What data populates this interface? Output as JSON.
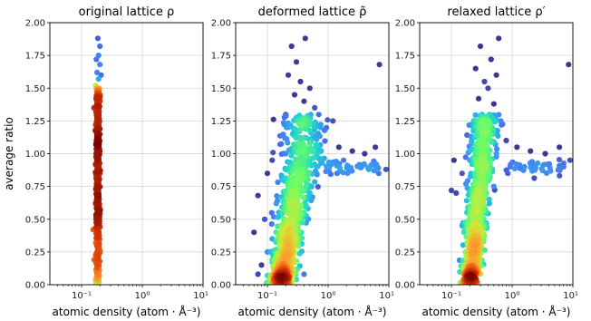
{
  "chart_data": [
    {
      "type": "scatter",
      "title": "original lattice ρ",
      "xlabel": "atomic density (atom · Å⁻³)",
      "ylabel": "average ratio",
      "xscale": "log",
      "xlim": [
        0.03,
        10
      ],
      "ylim": [
        0,
        2
      ],
      "x_ticks": [
        "10⁻¹",
        "10⁰",
        "10¹"
      ],
      "y_ticks": [
        "0.00",
        "0.25",
        "0.50",
        "0.75",
        "1.00",
        "1.25",
        "1.50",
        "1.75",
        "2.00"
      ],
      "grid": true,
      "colormap": "turbo (color encodes local point density)",
      "points": [
        [
          0.185,
          1.88
        ],
        [
          0.2,
          1.82
        ],
        [
          0.19,
          1.75
        ],
        [
          0.175,
          1.72
        ],
        [
          0.2,
          1.68
        ],
        [
          0.18,
          1.62
        ],
        [
          0.19,
          1.57
        ],
        [
          0.17,
          1.52
        ],
        [
          0.2,
          1.45
        ],
        [
          0.18,
          1.38
        ],
        [
          0.19,
          1.3
        ],
        [
          0.17,
          1.22
        ],
        [
          0.2,
          1.15
        ],
        [
          0.18,
          1.08
        ],
        [
          0.19,
          1.0
        ],
        [
          0.17,
          0.92
        ],
        [
          0.2,
          0.85
        ],
        [
          0.18,
          0.78
        ],
        [
          0.19,
          0.7
        ],
        [
          0.17,
          0.62
        ],
        [
          0.2,
          0.55
        ],
        [
          0.18,
          0.48
        ],
        [
          0.19,
          0.4
        ],
        [
          0.17,
          0.32
        ],
        [
          0.2,
          0.25
        ],
        [
          0.18,
          0.18
        ],
        [
          0.19,
          0.1
        ],
        [
          0.17,
          0.04
        ],
        [
          0.155,
          0.42
        ],
        [
          0.16,
          0.19
        ],
        [
          0.21,
          1.6
        ],
        [
          0.16,
          1.35
        ]
      ]
    },
    {
      "type": "scatter",
      "title": "deformed lattice ρ̃",
      "xlabel": "atomic density (atom · Å⁻³)",
      "ylabel": "",
      "xscale": "log",
      "xlim": [
        0.03,
        10
      ],
      "ylim": [
        0,
        2
      ],
      "x_ticks": [
        "10⁻¹",
        "10⁰",
        "10¹"
      ],
      "y_ticks": [
        "0.00",
        "0.25",
        "0.50",
        "0.75",
        "1.00",
        "1.25",
        "1.50",
        "1.75",
        "2.00"
      ],
      "grid": true,
      "colormap": "turbo (color encodes local point density)",
      "points": [
        [
          0.42,
          1.88
        ],
        [
          0.25,
          1.82
        ],
        [
          0.3,
          1.7
        ],
        [
          0.22,
          1.6
        ],
        [
          0.35,
          1.55
        ],
        [
          0.5,
          1.5
        ],
        [
          0.28,
          1.45
        ],
        [
          0.4,
          1.4
        ],
        [
          0.6,
          1.35
        ],
        [
          7.0,
          1.68
        ],
        [
          0.2,
          1.3
        ],
        [
          0.45,
          1.25
        ],
        [
          0.75,
          1.2
        ],
        [
          1.2,
          1.25
        ],
        [
          0.3,
          1.18
        ],
        [
          0.55,
          1.12
        ],
        [
          1.5,
          1.05
        ],
        [
          2.5,
          1.02
        ],
        [
          4.0,
          1.0
        ],
        [
          6.0,
          1.05
        ],
        [
          9.0,
          0.88
        ],
        [
          1.8,
          0.95
        ],
        [
          0.12,
          0.95
        ],
        [
          0.2,
          1.0
        ],
        [
          0.35,
          1.0
        ],
        [
          0.65,
          0.98
        ],
        [
          0.1,
          0.85
        ],
        [
          0.18,
          0.8
        ],
        [
          0.3,
          0.75
        ],
        [
          0.5,
          0.7
        ],
        [
          0.07,
          0.68
        ],
        [
          0.14,
          0.62
        ],
        [
          0.25,
          0.58
        ],
        [
          0.4,
          0.55
        ],
        [
          0.09,
          0.5
        ],
        [
          0.2,
          0.45
        ],
        [
          0.35,
          0.4
        ],
        [
          0.06,
          0.4
        ],
        [
          0.12,
          0.35
        ],
        [
          0.28,
          0.3
        ],
        [
          0.1,
          0.25
        ],
        [
          0.2,
          0.2
        ],
        [
          0.3,
          0.18
        ],
        [
          0.08,
          0.15
        ],
        [
          0.15,
          0.12
        ],
        [
          0.25,
          0.1
        ],
        [
          0.1,
          0.07
        ],
        [
          0.18,
          0.05
        ],
        [
          0.3,
          0.04
        ],
        [
          0.07,
          0.08
        ],
        [
          0.12,
          0.02
        ],
        [
          0.22,
          0.01
        ],
        [
          0.4,
          0.08
        ],
        [
          1.4,
          0.85
        ]
      ]
    },
    {
      "type": "scatter",
      "title": "relaxed lattice ρ′",
      "xlabel": "atomic density (atom · Å⁻³)",
      "ylabel": "",
      "xscale": "log",
      "xlim": [
        0.03,
        10
      ],
      "ylim": [
        0,
        2
      ],
      "x_ticks": [
        "10⁻¹",
        "10⁰",
        "10¹"
      ],
      "y_ticks": [
        "0.00",
        "0.25",
        "0.50",
        "0.75",
        "1.00",
        "1.25",
        "1.50",
        "1.75",
        "2.00"
      ],
      "grid": true,
      "colormap": "turbo (color encodes local point density)",
      "points": [
        [
          0.6,
          1.88
        ],
        [
          0.3,
          1.82
        ],
        [
          0.45,
          1.72
        ],
        [
          0.25,
          1.65
        ],
        [
          0.55,
          1.6
        ],
        [
          0.35,
          1.55
        ],
        [
          0.4,
          1.5
        ],
        [
          0.28,
          1.42
        ],
        [
          8.5,
          1.68
        ],
        [
          0.5,
          1.38
        ],
        [
          0.32,
          1.3
        ],
        [
          0.65,
          1.25
        ],
        [
          0.25,
          1.2
        ],
        [
          0.45,
          1.15
        ],
        [
          0.8,
          1.1
        ],
        [
          1.2,
          1.05
        ],
        [
          2.0,
          1.02
        ],
        [
          3.5,
          1.0
        ],
        [
          6.0,
          1.05
        ],
        [
          9.0,
          0.95
        ],
        [
          0.3,
          1.05
        ],
        [
          0.55,
          1.0
        ],
        [
          0.2,
          0.95
        ],
        [
          0.4,
          0.9
        ],
        [
          0.15,
          0.85
        ],
        [
          0.3,
          0.8
        ],
        [
          0.5,
          0.75
        ],
        [
          0.12,
          0.7
        ],
        [
          0.22,
          0.65
        ],
        [
          0.35,
          0.6
        ],
        [
          0.18,
          0.55
        ],
        [
          0.28,
          0.5
        ],
        [
          0.15,
          0.45
        ],
        [
          0.25,
          0.4
        ],
        [
          0.2,
          0.35
        ],
        [
          0.3,
          0.3
        ],
        [
          0.17,
          0.25
        ],
        [
          0.24,
          0.2
        ],
        [
          0.2,
          0.15
        ],
        [
          0.26,
          0.1
        ],
        [
          0.18,
          0.07
        ],
        [
          0.22,
          0.04
        ],
        [
          0.16,
          0.02
        ],
        [
          0.1,
          0.72
        ],
        [
          0.11,
          0.95
        ],
        [
          1.6,
          0.9
        ]
      ]
    }
  ]
}
